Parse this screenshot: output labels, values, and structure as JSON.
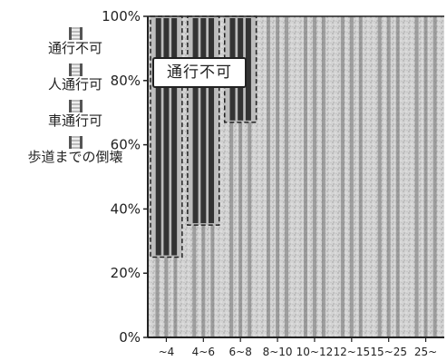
{
  "chart_data": {
    "type": "bar",
    "stacked": true,
    "title": "",
    "xlabel": "",
    "ylabel": "",
    "ylim": [
      0,
      100
    ],
    "y_ticks": [
      "0%",
      "20%",
      "40%",
      "60%",
      "80%",
      "100%"
    ],
    "categories": [
      "~4",
      "4~6",
      "6~8",
      "8~10",
      "10~12",
      "12~15",
      "15~25",
      "25~"
    ],
    "series": [
      {
        "name": "通行不可",
        "values": [
          75,
          65,
          33,
          0,
          0,
          0,
          0,
          0
        ]
      },
      {
        "name": "人通行可",
        "values": [
          25,
          35,
          67,
          100,
          100,
          100,
          100,
          100
        ]
      },
      {
        "name": "車通行可",
        "values": [
          0,
          0,
          0,
          0,
          0,
          0,
          0,
          0
        ]
      },
      {
        "name": "歩道までの倒壊",
        "values": [
          0,
          0,
          0,
          0,
          0,
          0,
          0,
          0
        ]
      }
    ],
    "legend_position": "left",
    "grid": false,
    "annotation": "通行不可"
  }
}
